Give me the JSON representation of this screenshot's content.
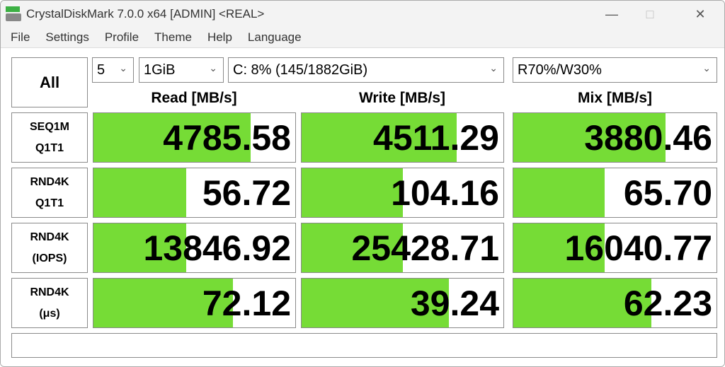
{
  "window": {
    "title": "CrystalDiskMark 7.0.0 x64 [ADMIN] <REAL>"
  },
  "menu": [
    "File",
    "Settings",
    "Profile",
    "Theme",
    "Help",
    "Language"
  ],
  "controls": {
    "all_label": "All",
    "count": "5",
    "size": "1GiB",
    "drive": "C: 8% (145/1882GiB)",
    "mix": "R70%/W30%"
  },
  "headers": {
    "read": "Read [MB/s]",
    "write": "Write [MB/s]",
    "mix": "Mix [MB/s]"
  },
  "accent": "#76dc36",
  "rows": [
    {
      "l1": "SEQ1M",
      "l2": "Q1T1",
      "read": "4785.58",
      "write": "4511.29",
      "mix": "3880.46",
      "fr": 0.78,
      "fw": 0.77,
      "fm": 0.75
    },
    {
      "l1": "RND4K",
      "l2": "Q1T1",
      "read": "56.72",
      "write": "104.16",
      "mix": "65.70",
      "fr": 0.46,
      "fw": 0.5,
      "fm": 0.45
    },
    {
      "l1": "RND4K",
      "l2": "(IOPS)",
      "read": "13846.92",
      "write": "25428.71",
      "mix": "16040.77",
      "fr": 0.46,
      "fw": 0.5,
      "fm": 0.45
    },
    {
      "l1": "RND4K",
      "l2": "(μs)",
      "read": "72.12",
      "write": "39.24",
      "mix": "62.23",
      "fr": 0.69,
      "fw": 0.73,
      "fm": 0.68
    }
  ],
  "status": ""
}
